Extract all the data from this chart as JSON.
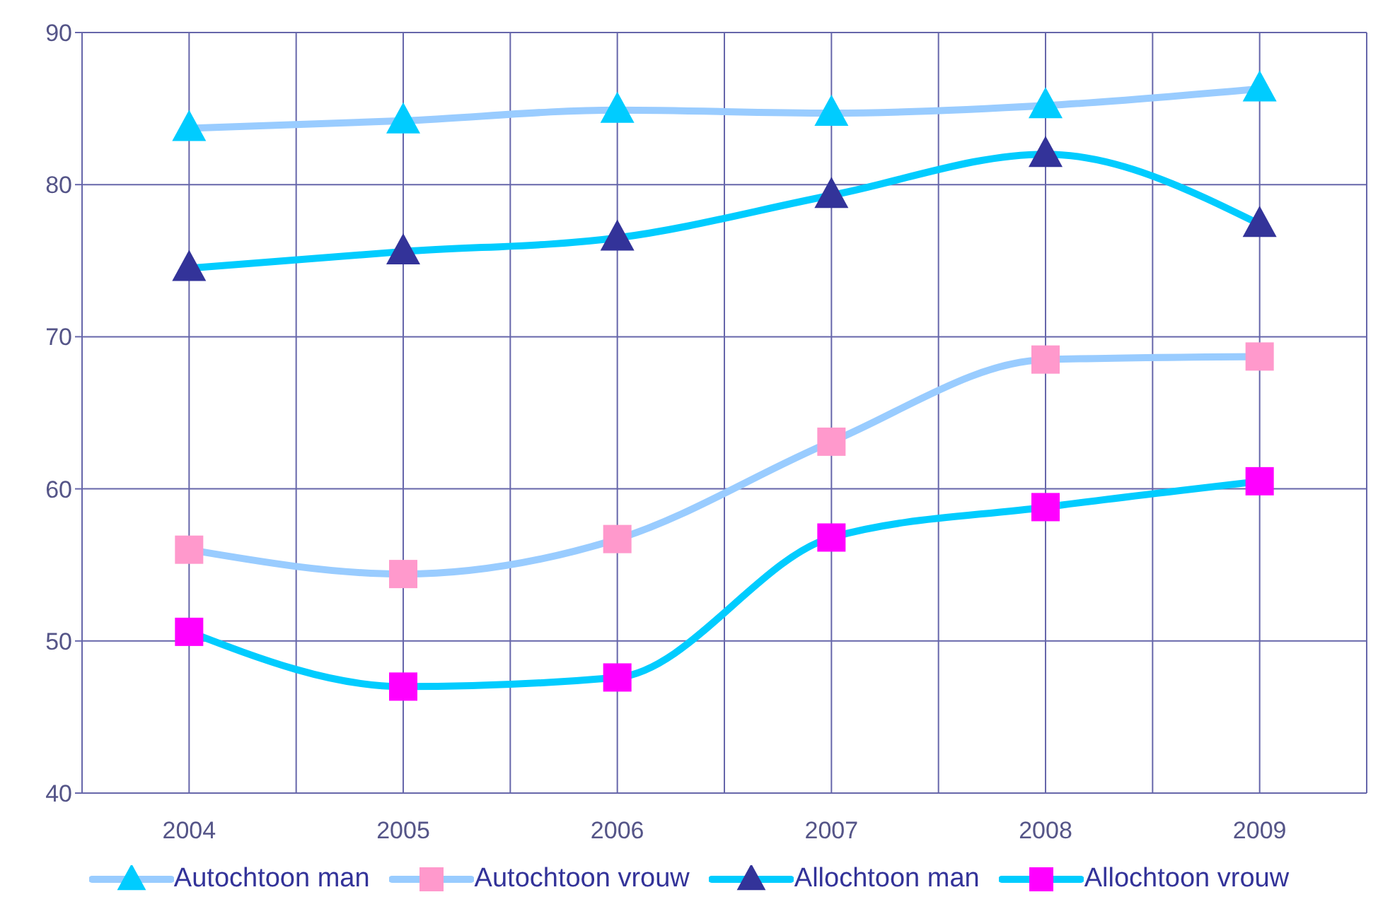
{
  "chart_data": {
    "type": "line",
    "categories": [
      "2004",
      "2005",
      "2006",
      "2007",
      "2008",
      "2009"
    ],
    "ylim": [
      40,
      90
    ],
    "yticks": [
      40,
      50,
      60,
      70,
      80,
      90
    ],
    "grid": true,
    "legend": "bottom",
    "line_style": "solid",
    "series": [
      {
        "name": "Autochtoon man",
        "color": "#99ccff",
        "marker": "triangle",
        "colors": [
          "#00ccff",
          "#00ccff",
          "#00ccff",
          "#00ccff",
          "#00ccff",
          "#00ccff"
        ],
        "values": [
          83.7,
          84.2,
          84.9,
          84.7,
          85.2,
          86.3
        ]
      },
      {
        "name": "Autochtoon vrouw",
        "color": "#99ccff",
        "marker": "square",
        "colors": [
          "#ff99cc",
          "#ff99cc",
          "#ff99cc",
          "#ff99cc",
          "#ff99cc",
          "#ff99cc"
        ],
        "values": [
          56.0,
          54.4,
          56.7,
          63.1,
          68.5,
          68.7
        ]
      },
      {
        "name": "Allochtoon man",
        "color": "#00ccff",
        "marker": "triangle",
        "colors": [
          "#333399",
          "#333399",
          "#333399",
          "#333399",
          "#333399",
          "#333399"
        ],
        "values": [
          74.5,
          75.6,
          76.5,
          79.3,
          82.0,
          77.4
        ]
      },
      {
        "name": "Allochtoon vrouw",
        "color": "#00ccff",
        "marker": "square",
        "colors": [
          "#ff00ff",
          "#ff00ff",
          "#ff00ff",
          "#ff00ff",
          "#ff00ff",
          "#ff00ff"
        ],
        "values": [
          50.6,
          47.0,
          47.6,
          56.8,
          58.8,
          60.5
        ]
      }
    ]
  }
}
